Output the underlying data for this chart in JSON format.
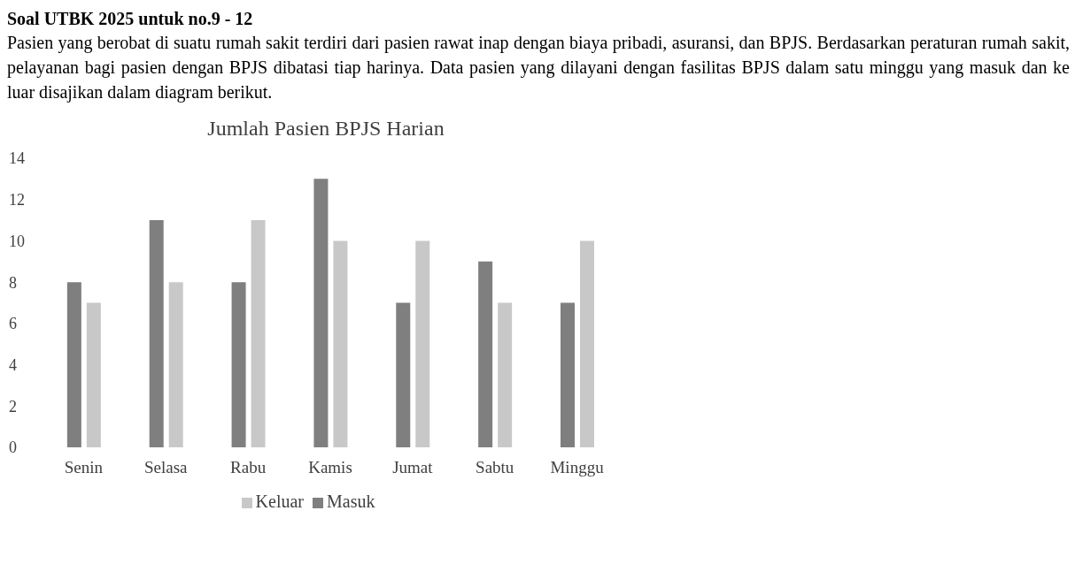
{
  "chart_data": {
    "type": "bar",
    "title": "Jumlah Pasien BPJS Harian",
    "annotations": [
      "Soal UTBK 2025 untuk no.9 - 12",
      "Pasien yang berobat di suatu rumah sakit terdiri dari pasien rawat inap dengan biaya pribadi, asuransi, dan BPJS. Berdasarkan peraturan rumah sakit, pelayanan bagi pasien dengan BPJS dibatasi tiap harinya. Data pasien yang dilayani dengan fasilitas BPJS dalam satu minggu yang masuk dan ke luar disajikan dalam diagram berikut."
    ],
    "categories": [
      "Senin",
      "Selasa",
      "Rabu",
      "Kamis",
      "Jumat",
      "Sabtu",
      "Minggu"
    ],
    "series": [
      {
        "name": "Masuk",
        "color": "#7f7f7f",
        "values": [
          8,
          11,
          8,
          13,
          7,
          9,
          7
        ]
      },
      {
        "name": "Keluar",
        "color": "#c8c8c8",
        "values": [
          7,
          8,
          11,
          10,
          10,
          7,
          10
        ]
      }
    ],
    "ylim": [
      0,
      14
    ],
    "yticks": [
      0,
      2,
      4,
      6,
      8,
      10,
      12,
      14
    ],
    "grid": false,
    "legend": "bottom"
  }
}
